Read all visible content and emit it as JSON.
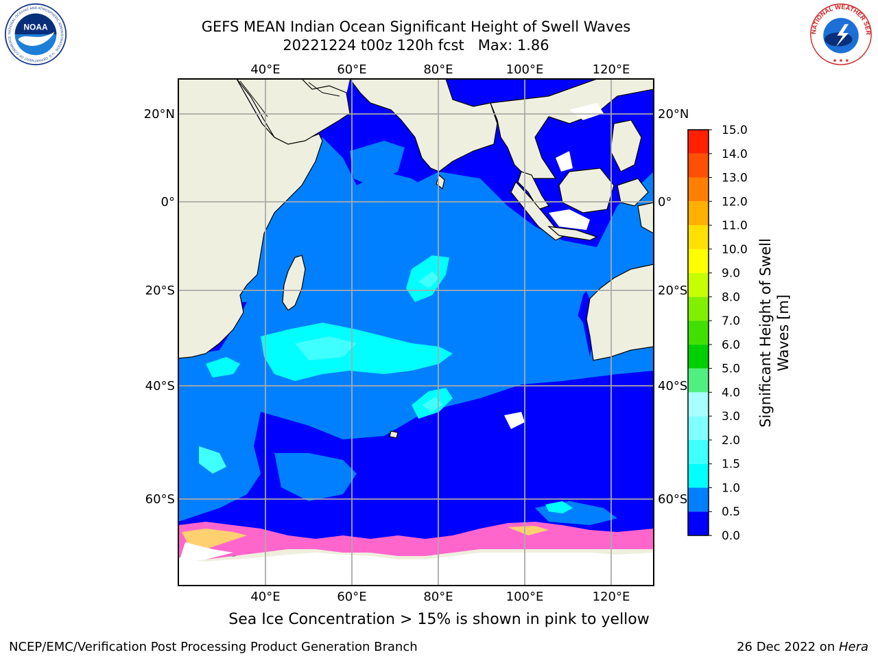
{
  "title_line1": "GEFS MEAN Indian Ocean Significant Height of Swell Waves",
  "title_line2": "20221224 t00z 120h fcst   Max: 1.86",
  "lon_ticks": [
    "40°E",
    "60°E",
    "80°E",
    "100°E",
    "120°E"
  ],
  "lat_ticks": [
    "20°N",
    "0°",
    "20°S",
    "40°S",
    "60°S"
  ],
  "colorbar": {
    "label_line1": "Significant Height of Swell",
    "label_line2": "Waves [m]",
    "ticks": [
      "0.0",
      "0.5",
      "1.0",
      "1.5",
      "2.0",
      "3.0",
      "4.0",
      "5.0",
      "6.0",
      "7.0",
      "8.0",
      "9.0",
      "10.0",
      "11.0",
      "12.0",
      "13.0",
      "14.0",
      "15.0"
    ],
    "colors": [
      "#0000ff",
      "#0080ff",
      "#00ffff",
      "#40ffff",
      "#80ffff",
      "#a8ffff",
      "#50f080",
      "#00d000",
      "#40e000",
      "#80f000",
      "#c8ff00",
      "#ffff00",
      "#ffe000",
      "#ffb000",
      "#ff8000",
      "#ff5000",
      "#ff2000",
      "#ff0000"
    ]
  },
  "map_colors": {
    "land": "#efefdf",
    "swell_0_0p5": "#0000ff",
    "swell_0p5_1": "#0080ff",
    "swell_1_1p5": "#00ffff",
    "swell_1p5_2": "#40ffff",
    "ice": "#ff66cc",
    "ice_edge": "#ffd070",
    "grid": "#aaaaaa"
  },
  "logos": {
    "noaa": {
      "icon": "noaa-logo-icon",
      "text": "NOAA",
      "ring_text": "NATIONAL OCEANIC AND ATMOSPHERIC ADMINISTRATION · U.S. DEPARTMENT OF COMMERCE"
    },
    "nws": {
      "icon": "nws-logo-icon",
      "ring_text": "NATIONAL WEATHER SERVICE"
    }
  },
  "ice_note": "Sea Ice Concentration > 15% is shown in pink to yellow",
  "footer_left": "NCEP/EMC/Verification Post Processing Product Generation Branch",
  "footer_date": "26 Dec 2022 on ",
  "footer_host": "Hera"
}
